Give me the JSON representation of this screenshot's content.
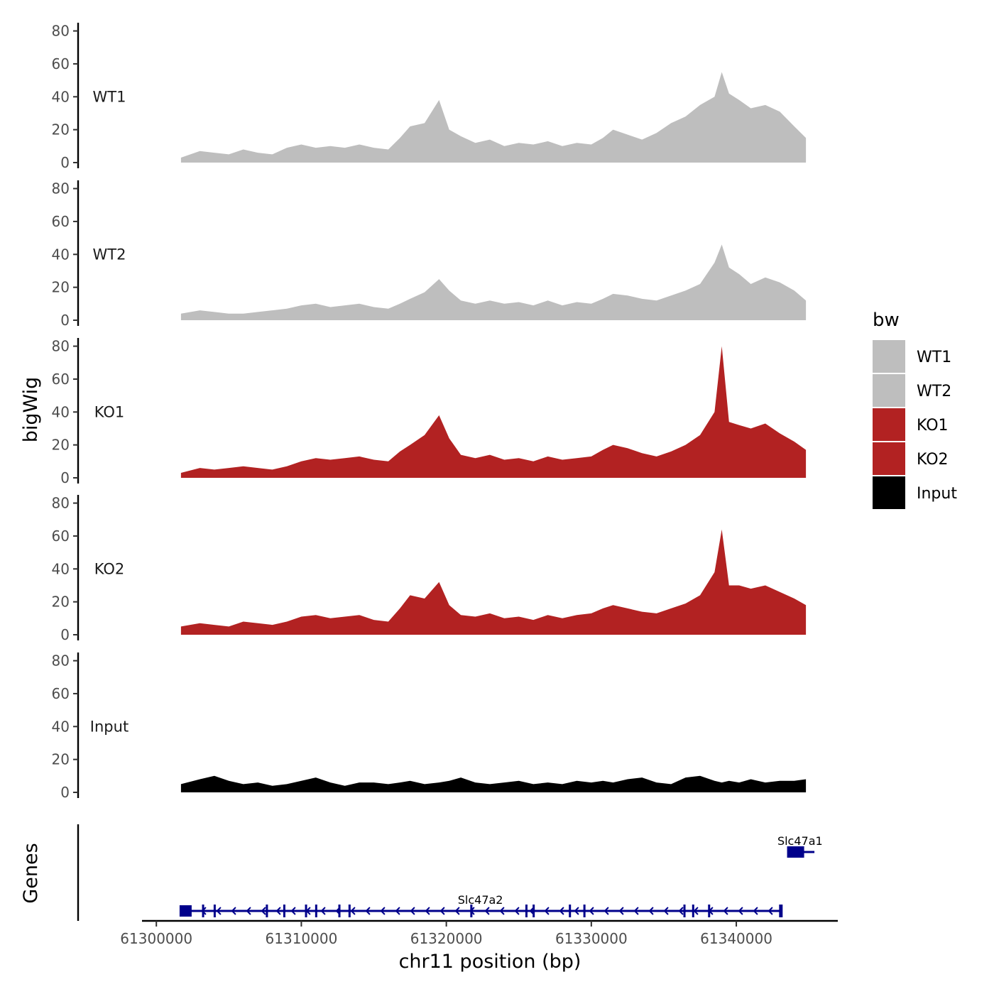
{
  "chart_data": {
    "type": "area",
    "chromosome": "chr11",
    "xlabel": "chr11 position (bp)",
    "ylabel": "bigWig",
    "genes_label": "Genes",
    "xlim": [
      61299500,
      61347000
    ],
    "x_ticks": [
      61300000,
      61310000,
      61320000,
      61330000,
      61340000
    ],
    "x_tick_labels": [
      "61300000",
      "61310000",
      "61320000",
      "61330000",
      "61340000"
    ],
    "ylim": [
      0,
      85
    ],
    "y_ticks": [
      0,
      20,
      40,
      60,
      80
    ],
    "y_tick_labels": [
      "0",
      "20",
      "40",
      "60",
      "80"
    ],
    "legend": {
      "title": "bw",
      "entries": [
        {
          "label": "WT1",
          "color": "#BEBEBE"
        },
        {
          "label": "WT2",
          "color": "#BEBEBE"
        },
        {
          "label": "KO1",
          "color": "#B22222"
        },
        {
          "label": "KO2",
          "color": "#B22222"
        },
        {
          "label": "Input",
          "color": "#000000"
        }
      ]
    },
    "series": [
      {
        "name": "WT1",
        "color": "#BEBEBE",
        "x": [
          61301700,
          61303000,
          61304000,
          61305000,
          61306000,
          61307000,
          61308000,
          61309000,
          61310000,
          61311000,
          61312000,
          61313000,
          61314000,
          61315000,
          61316000,
          61316800,
          61317500,
          61318500,
          61319500,
          61320200,
          61321000,
          61322000,
          61323000,
          61324000,
          61325000,
          61326000,
          61327000,
          61328000,
          61329000,
          61330000,
          61330800,
          61331500,
          61332500,
          61333500,
          61334500,
          61335500,
          61336500,
          61337500,
          61338500,
          61339000,
          61339500,
          61340200,
          61341000,
          61342000,
          61343000,
          61344000,
          61344800
        ],
        "values": [
          3,
          7,
          6,
          5,
          8,
          6,
          5,
          9,
          11,
          9,
          10,
          9,
          11,
          9,
          8,
          15,
          22,
          24,
          38,
          20,
          16,
          12,
          14,
          10,
          12,
          11,
          13,
          10,
          12,
          11,
          15,
          20,
          17,
          14,
          18,
          24,
          28,
          35,
          40,
          55,
          42,
          38,
          33,
          35,
          31,
          22,
          15
        ]
      },
      {
        "name": "WT2",
        "color": "#BEBEBE",
        "x": [
          61301700,
          61303000,
          61304000,
          61305000,
          61306000,
          61307000,
          61308000,
          61309000,
          61310000,
          61311000,
          61312000,
          61313000,
          61314000,
          61315000,
          61316000,
          61316800,
          61317500,
          61318500,
          61319500,
          61320200,
          61321000,
          61322000,
          61323000,
          61324000,
          61325000,
          61326000,
          61327000,
          61328000,
          61329000,
          61330000,
          61330800,
          61331500,
          61332500,
          61333500,
          61334500,
          61335500,
          61336500,
          61337500,
          61338500,
          61339000,
          61339500,
          61340200,
          61341000,
          61342000,
          61343000,
          61344000,
          61344800
        ],
        "values": [
          4,
          6,
          5,
          4,
          4,
          5,
          6,
          7,
          9,
          10,
          8,
          9,
          10,
          8,
          7,
          10,
          13,
          17,
          25,
          18,
          12,
          10,
          12,
          10,
          11,
          9,
          12,
          9,
          11,
          10,
          13,
          16,
          15,
          13,
          12,
          15,
          18,
          22,
          35,
          46,
          32,
          28,
          22,
          26,
          23,
          18,
          12
        ]
      },
      {
        "name": "KO1",
        "color": "#B22222",
        "x": [
          61301700,
          61303000,
          61304000,
          61305000,
          61306000,
          61307000,
          61308000,
          61309000,
          61310000,
          61311000,
          61312000,
          61313000,
          61314000,
          61315000,
          61316000,
          61316800,
          61317500,
          61318500,
          61319500,
          61320200,
          61321000,
          61322000,
          61323000,
          61324000,
          61325000,
          61326000,
          61327000,
          61328000,
          61329000,
          61330000,
          61330800,
          61331500,
          61332500,
          61333500,
          61334500,
          61335500,
          61336500,
          61337500,
          61338500,
          61339000,
          61339500,
          61340200,
          61341000,
          61342000,
          61343000,
          61344000,
          61344800
        ],
        "values": [
          3,
          6,
          5,
          6,
          7,
          6,
          5,
          7,
          10,
          12,
          11,
          12,
          13,
          11,
          10,
          16,
          20,
          26,
          38,
          24,
          14,
          12,
          14,
          11,
          12,
          10,
          13,
          11,
          12,
          13,
          17,
          20,
          18,
          15,
          13,
          16,
          20,
          26,
          40,
          80,
          34,
          32,
          30,
          33,
          27,
          22,
          17
        ]
      },
      {
        "name": "KO2",
        "color": "#B22222",
        "x": [
          61301700,
          61303000,
          61304000,
          61305000,
          61306000,
          61307000,
          61308000,
          61309000,
          61310000,
          61311000,
          61312000,
          61313000,
          61314000,
          61315000,
          61316000,
          61316800,
          61317500,
          61318500,
          61319500,
          61320200,
          61321000,
          61322000,
          61323000,
          61324000,
          61325000,
          61326000,
          61327000,
          61328000,
          61329000,
          61330000,
          61330800,
          61331500,
          61332500,
          61333500,
          61334500,
          61335500,
          61336500,
          61337500,
          61338500,
          61339000,
          61339500,
          61340200,
          61341000,
          61342000,
          61343000,
          61344000,
          61344800
        ],
        "values": [
          5,
          7,
          6,
          5,
          8,
          7,
          6,
          8,
          11,
          12,
          10,
          11,
          12,
          9,
          8,
          16,
          24,
          22,
          32,
          18,
          12,
          11,
          13,
          10,
          11,
          9,
          12,
          10,
          12,
          13,
          16,
          18,
          16,
          14,
          13,
          16,
          19,
          24,
          38,
          64,
          30,
          30,
          28,
          30,
          26,
          22,
          18
        ]
      },
      {
        "name": "Input",
        "color": "#000000",
        "x": [
          61301700,
          61303000,
          61304000,
          61305000,
          61306000,
          61307000,
          61308000,
          61309000,
          61310000,
          61311000,
          61312000,
          61313000,
          61314000,
          61315000,
          61316000,
          61316800,
          61317500,
          61318500,
          61319500,
          61320200,
          61321000,
          61322000,
          61323000,
          61324000,
          61325000,
          61326000,
          61327000,
          61328000,
          61329000,
          61330000,
          61330800,
          61331500,
          61332500,
          61333500,
          61334500,
          61335500,
          61336500,
          61337500,
          61338500,
          61339000,
          61339500,
          61340200,
          61341000,
          61342000,
          61343000,
          61344000,
          61344800
        ],
        "values": [
          5,
          8,
          10,
          7,
          5,
          6,
          4,
          5,
          7,
          9,
          6,
          4,
          6,
          6,
          5,
          6,
          7,
          5,
          6,
          7,
          9,
          6,
          5,
          6,
          7,
          5,
          6,
          5,
          7,
          6,
          7,
          6,
          8,
          9,
          6,
          5,
          9,
          10,
          7,
          6,
          7,
          6,
          8,
          6,
          7,
          7,
          8
        ]
      }
    ],
    "genes": [
      {
        "name": "Slc47a2",
        "strand": "-",
        "start": 61301700,
        "end": 61343000,
        "row": 0,
        "exons": [
          61301700,
          61303200,
          61304000,
          61307600,
          61308800,
          61310300,
          61311000,
          61312600,
          61313300,
          61321700,
          61325500,
          61326000,
          61328500,
          61329500,
          61336400,
          61337000,
          61338100,
          61343000
        ]
      },
      {
        "name": "Slc47a1",
        "strand": "+",
        "start": 61343600,
        "end": 61344800,
        "row": 1,
        "exons": [
          61343600
        ]
      }
    ]
  }
}
